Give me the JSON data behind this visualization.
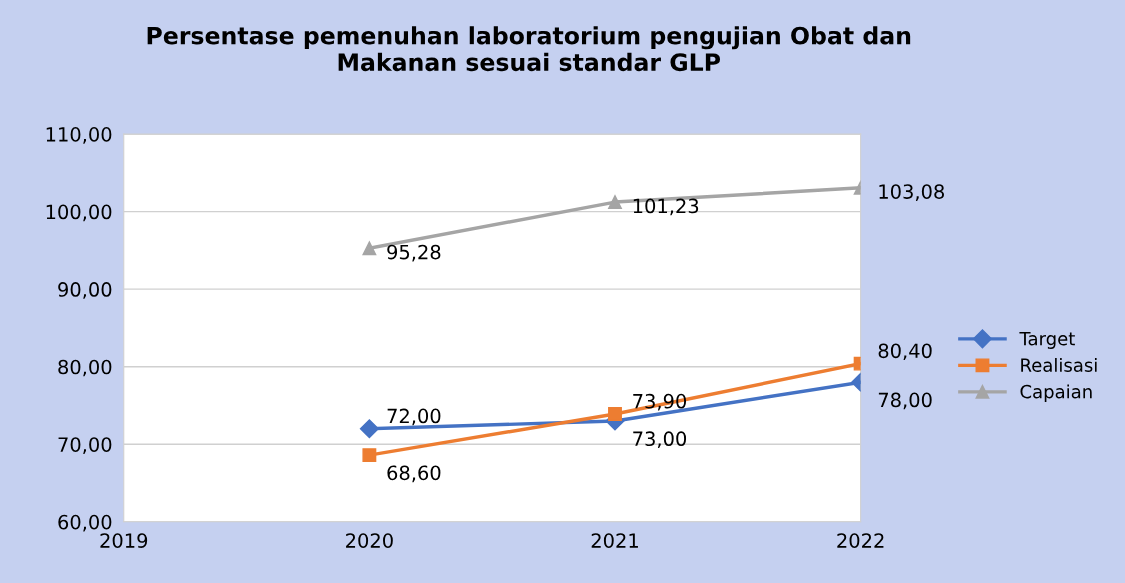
{
  "chart_data": {
    "type": "line",
    "title": "Persentase pemenuhan laboratorium pengujian Obat dan\nMakanan sesuai standar GLP",
    "x": [
      2020,
      2021,
      2022
    ],
    "series": [
      {
        "name": "Target",
        "color": "#4472c4",
        "marker": "diamond",
        "values": [
          72.0,
          73.0,
          78.0
        ],
        "value_labels": [
          "72,00",
          "73,00",
          "78,00"
        ]
      },
      {
        "name": "Realisasi",
        "color": "#ed7d31",
        "marker": "square",
        "values": [
          68.6,
          73.9,
          80.4
        ],
        "value_labels": [
          "68,60",
          "73,90",
          "80,40"
        ]
      },
      {
        "name": "Capaian",
        "color": "#a5a5a5",
        "marker": "triangle",
        "values": [
          95.28,
          101.23,
          103.08
        ],
        "value_labels": [
          "95,28",
          "101,23",
          "103,08"
        ]
      }
    ],
    "xlim": [
      2019,
      2022
    ],
    "xticks": [
      2019,
      2020,
      2021,
      2022
    ],
    "ylim": [
      60,
      110
    ],
    "yticks": [
      {
        "value": 60,
        "label": "60,00"
      },
      {
        "value": 70,
        "label": "70,00"
      },
      {
        "value": 80,
        "label": "80,00"
      },
      {
        "value": 90,
        "label": "90,00"
      },
      {
        "value": 100,
        "label": "100,00"
      },
      {
        "value": 110,
        "label": "110,00"
      }
    ],
    "grid": "y",
    "legend": "right",
    "line_style": "solid"
  }
}
